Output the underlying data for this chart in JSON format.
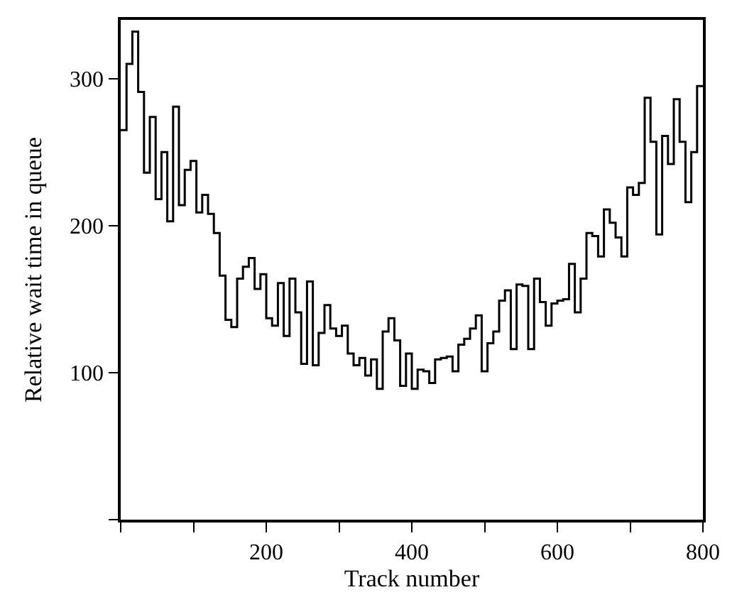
{
  "chart_data": {
    "type": "step",
    "xlabel": "Track number",
    "ylabel": "Relative wait time in queue",
    "x": [
      0,
      8,
      16,
      24,
      32,
      40,
      48,
      56,
      64,
      72,
      80,
      88,
      96,
      104,
      112,
      120,
      128,
      136,
      144,
      152,
      160,
      168,
      176,
      184,
      192,
      200,
      208,
      216,
      224,
      232,
      240,
      248,
      256,
      264,
      272,
      280,
      288,
      296,
      304,
      312,
      320,
      328,
      336,
      344,
      352,
      360,
      368,
      376,
      384,
      392,
      400,
      408,
      416,
      424,
      432,
      440,
      448,
      456,
      464,
      472,
      480,
      488,
      496,
      504,
      512,
      520,
      528,
      536,
      544,
      552,
      560,
      568,
      576,
      584,
      592,
      600,
      608,
      616,
      624,
      632,
      640,
      648,
      656,
      664,
      672,
      680,
      688,
      696,
      704,
      712,
      720,
      728,
      736,
      744,
      752,
      760,
      768,
      776,
      784,
      792,
      800
    ],
    "values": [
      265,
      310,
      332,
      291,
      236,
      274,
      218,
      250,
      203,
      281,
      214,
      238,
      244,
      209,
      221,
      208,
      195,
      166,
      136,
      131,
      164,
      172,
      178,
      157,
      167,
      137,
      132,
      161,
      125,
      164,
      141,
      106,
      162,
      105,
      127,
      146,
      130,
      125,
      132,
      113,
      105,
      110,
      98,
      109,
      89,
      128,
      137,
      122,
      91,
      113,
      89,
      102,
      101,
      93,
      109,
      110,
      111,
      101,
      119,
      123,
      130,
      139,
      101,
      120,
      128,
      149,
      156,
      116,
      160,
      159,
      116,
      164,
      148,
      132,
      147,
      149,
      150,
      174,
      141,
      164,
      195,
      193,
      179,
      211,
      202,
      192,
      179,
      226,
      221,
      229,
      287,
      257,
      194,
      261,
      242,
      286,
      257,
      216,
      250,
      295,
      295
    ],
    "color": "#000000",
    "xlim": [
      0,
      800
    ],
    "ylim": [
      0,
      340
    ],
    "xticks": [
      {
        "value": 0,
        "label": null
      },
      {
        "value": 100,
        "label": null
      },
      200,
      {
        "value": 300,
        "label": null
      },
      400,
      {
        "value": 500,
        "label": null
      },
      600,
      {
        "value": 700,
        "label": null
      },
      800
    ],
    "yticks": [
      {
        "value": 0,
        "label": null
      },
      100,
      200,
      300
    ],
    "legend": false,
    "marker": "none",
    "line_style": "solid"
  }
}
